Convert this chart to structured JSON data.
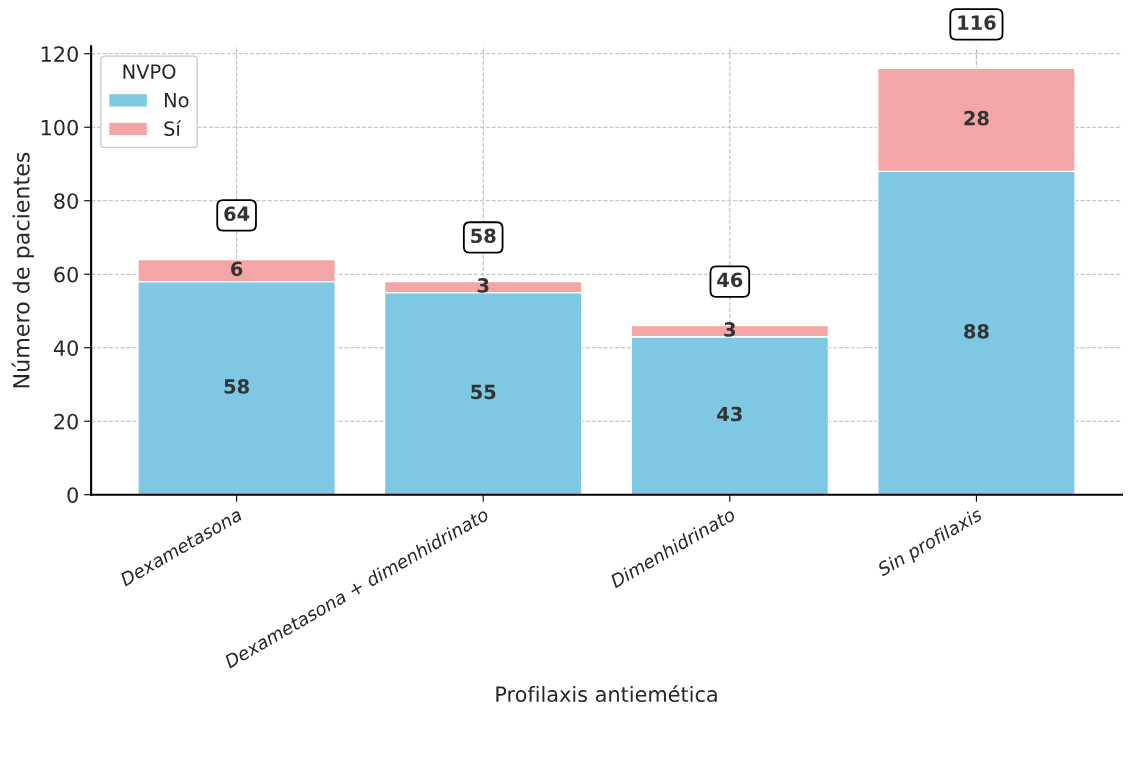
{
  "chart_data": {
    "type": "bar",
    "xlabel": "Profilaxis antiemética",
    "ylabel": "Número de pacientes",
    "legend_title": "NVPO",
    "categories": [
      "Dexametasona",
      "Dexametasona + dimenhidrinato",
      "Dimenhidrinato",
      "Sin profilaxis"
    ],
    "series": [
      {
        "name": "No",
        "color": "#7ec8e3",
        "values": [
          58,
          55,
          43,
          88
        ]
      },
      {
        "name": "Sí",
        "color": "#f4a6a6",
        "values": [
          6,
          3,
          3,
          28
        ]
      }
    ],
    "stacked": true,
    "data_labels": true,
    "totals": [
      "64",
      "58",
      "46",
      "116"
    ],
    "ylim": [
      0,
      122
    ],
    "yticks": [
      0,
      20,
      40,
      60,
      80,
      100,
      120
    ],
    "grid": true,
    "legend": "top left"
  }
}
